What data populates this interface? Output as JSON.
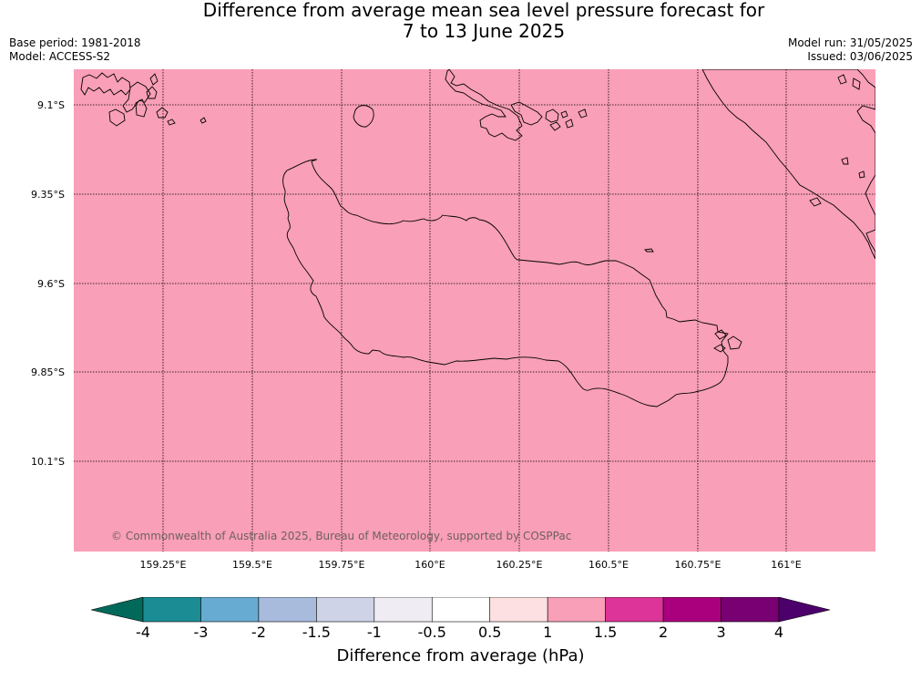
{
  "title": {
    "line1": "Difference from average mean sea level pressure forecast for",
    "line2": "7 to 13 June 2025"
  },
  "meta_left": {
    "base_period": "Base period: 1981-2018",
    "model": "Model: ACCESS-S2"
  },
  "meta_right": {
    "model_run": "Model run: 31/05/2025",
    "issued": "Issued: 03/06/2025"
  },
  "map": {
    "fill_color": "#f99fb7",
    "land_outline_color": "#000000",
    "grid_style": "dotted",
    "lat_labels": [
      "9.1°S",
      "9.35°S",
      "9.6°S",
      "9.85°S",
      "10.1°S"
    ],
    "lon_labels": [
      "159.25°E",
      "159.5°E",
      "159.75°E",
      "160°E",
      "160.25°E",
      "160.5°E",
      "160.75°E",
      "161°E"
    ],
    "copyright": "© Commonwealth of Australia 2025, Bureau of Meteorology, supported by COSPPac"
  },
  "colorbar": {
    "label": "Difference from average (hPa)",
    "ticks": [
      "-4",
      "-3",
      "-2",
      "-1.5",
      "-1",
      "-0.5",
      "0.5",
      "1",
      "1.5",
      "2",
      "3",
      "4"
    ],
    "colors": [
      "#1b8c94",
      "#67abd2",
      "#a8bbdc",
      "#cfd3e8",
      "#efecf4",
      "#ffffff",
      "#fde0e1",
      "#f99fb7",
      "#dc3498",
      "#ab007e",
      "#780072"
    ],
    "extend_low_color": "#00695a",
    "extend_high_color": "#4c006b"
  }
}
